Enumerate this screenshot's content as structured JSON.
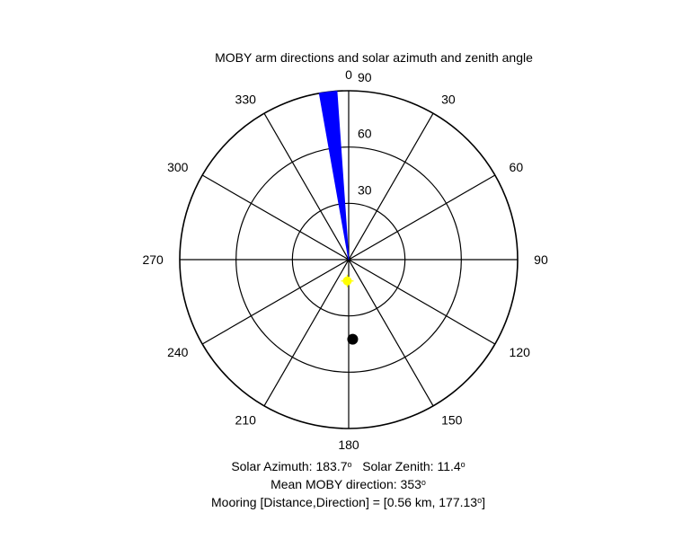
{
  "chart_data": {
    "type": "polar",
    "title": "MOBY arm directions and solar azimuth and zenith angle",
    "angle_labels": [
      "0",
      "30",
      "60",
      "90",
      "120",
      "150",
      "180",
      "210",
      "240",
      "270",
      "300",
      "330"
    ],
    "radial_ticks": [
      "30",
      "60",
      "90"
    ],
    "radial_max": 90,
    "arm_wedge": {
      "angle_start": 350,
      "angle_end": 356,
      "color": "#0000ff"
    },
    "sun": {
      "azimuth": 183.7,
      "zenith": 11.4,
      "color": "#ffff00"
    },
    "mooring_marker": {
      "azimuth": 177.13,
      "radius": 42.5,
      "color": "#000000"
    }
  },
  "footer": {
    "solar_azimuth_label": "Solar Azimuth: 183.7",
    "solar_zenith_label": "Solar Zenith: 11.4",
    "mean_direction_label": "Mean MOBY direction: 353",
    "mooring_label": "Mooring [Distance,Direction] = [0.56 km, 177.13",
    "mooring_close": "]",
    "degree_symbol": "o"
  }
}
